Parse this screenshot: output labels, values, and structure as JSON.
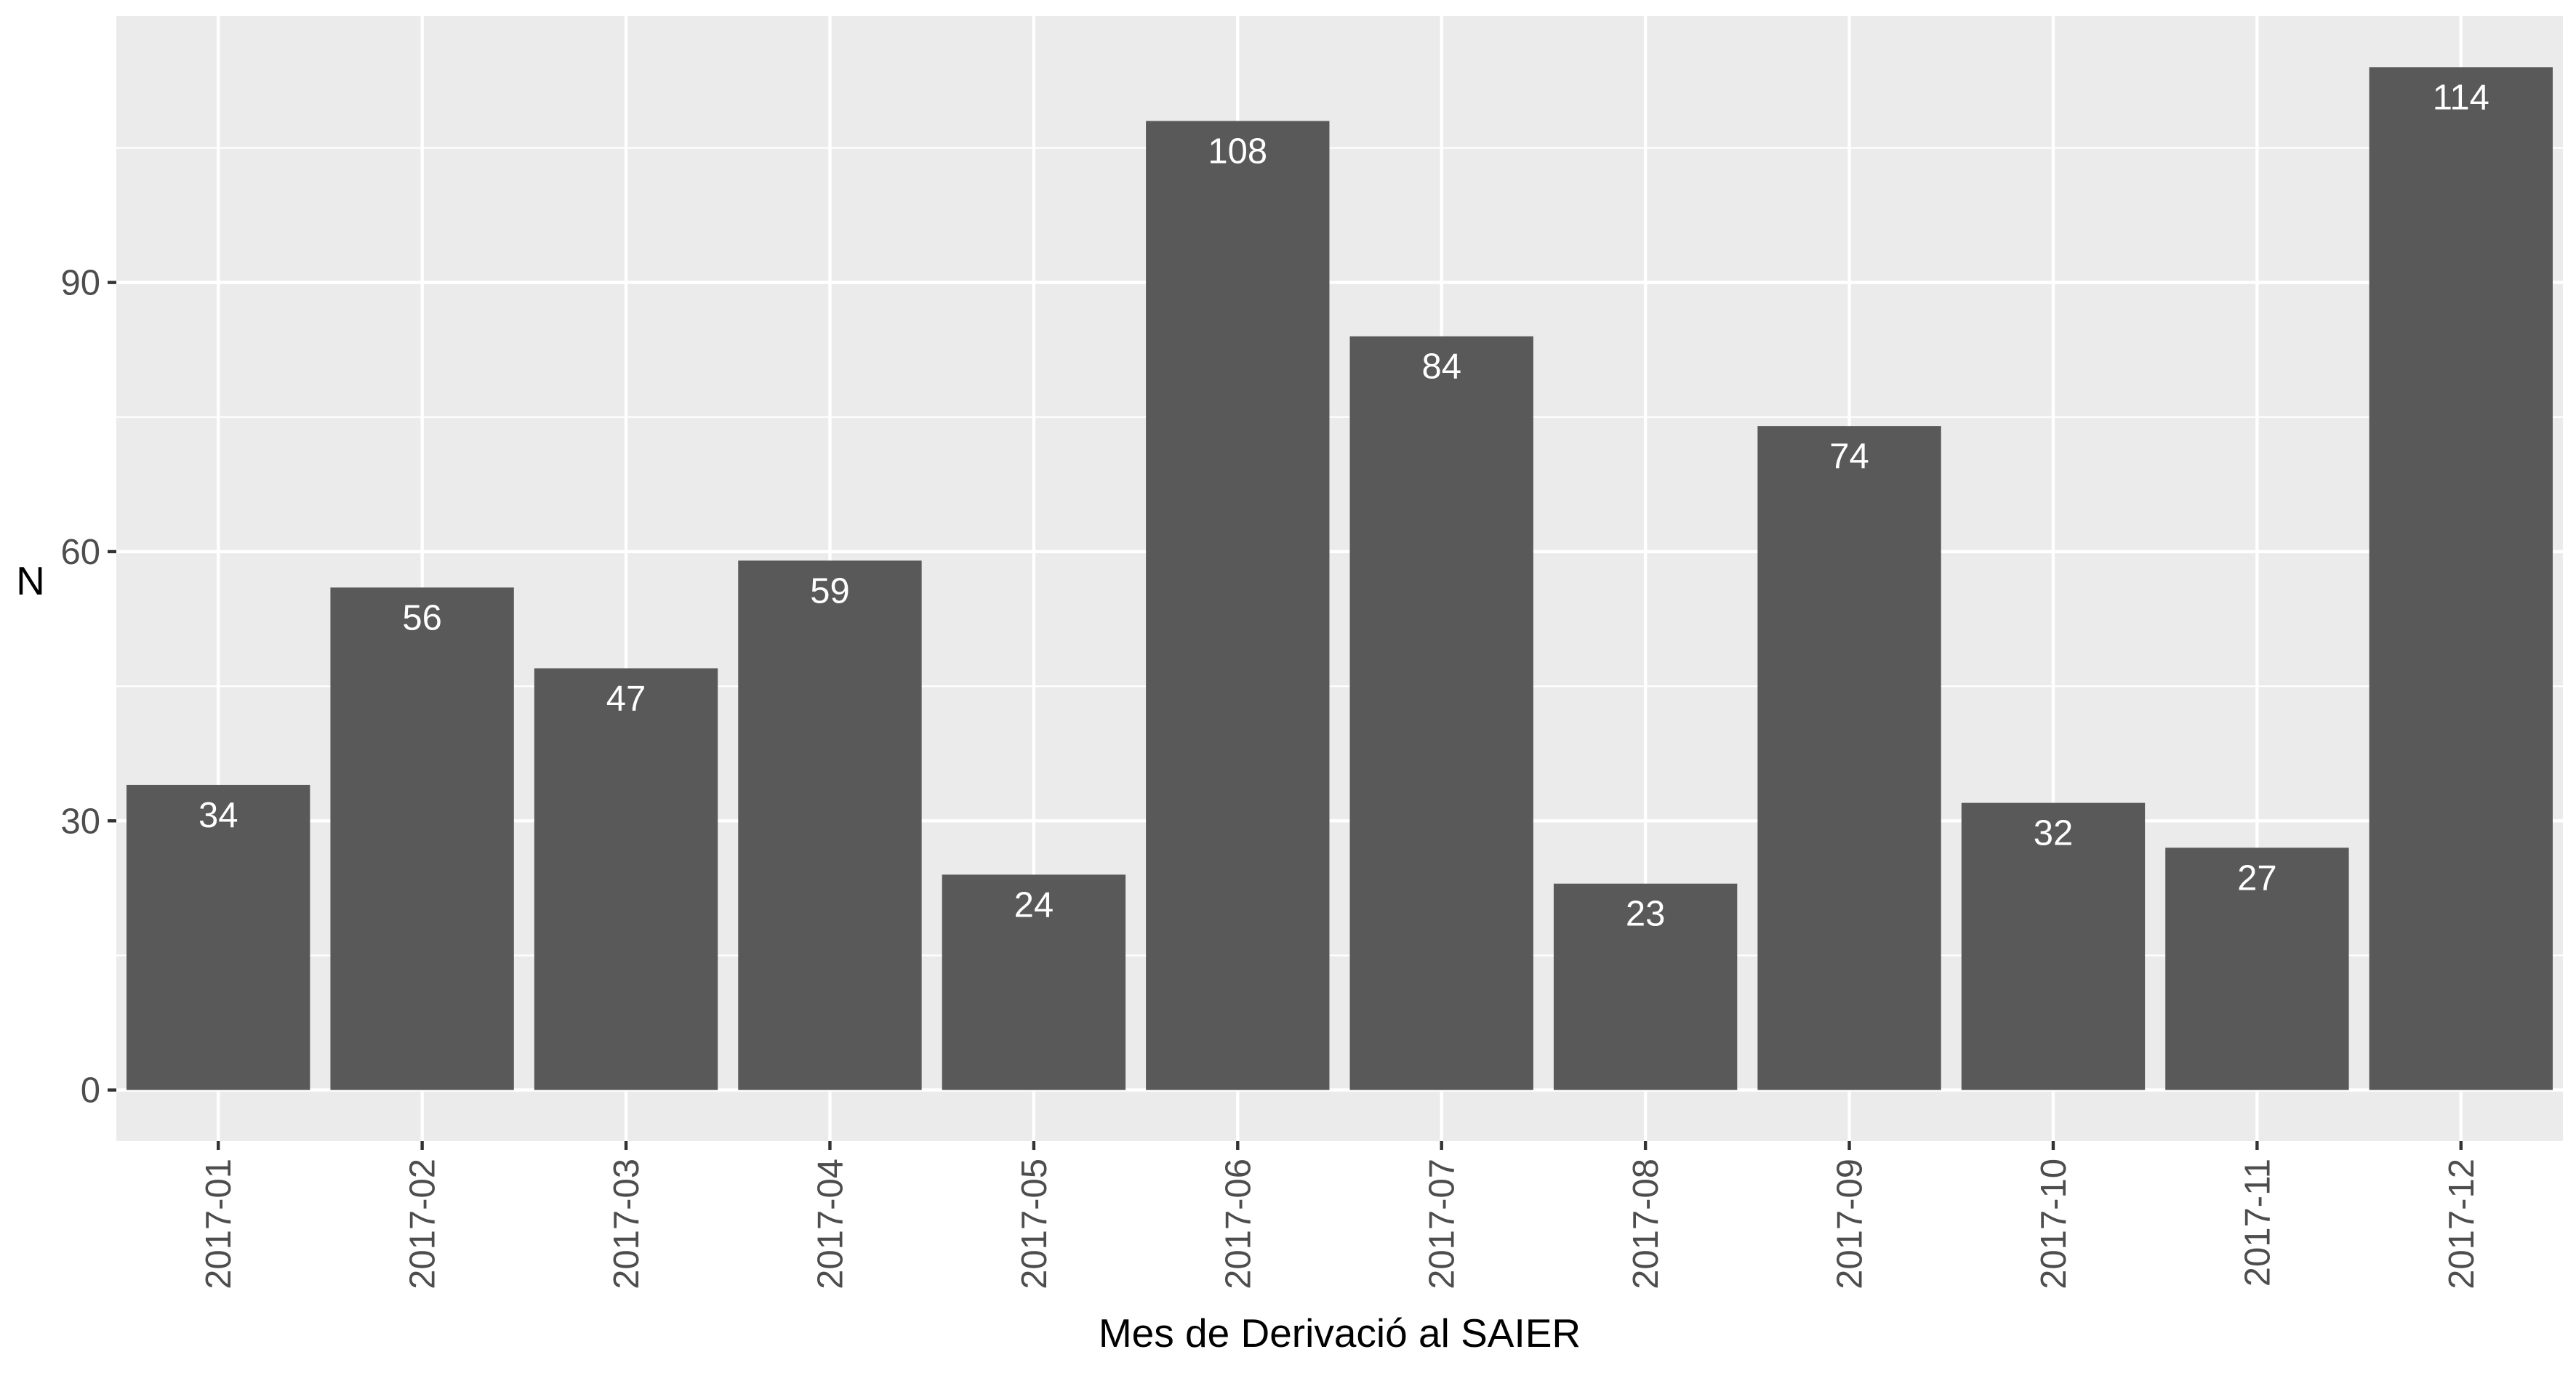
{
  "chart_data": {
    "type": "bar",
    "categories": [
      "2017-01",
      "2017-02",
      "2017-03",
      "2017-04",
      "2017-05",
      "2017-06",
      "2017-07",
      "2017-08",
      "2017-09",
      "2017-10",
      "2017-11",
      "2017-12"
    ],
    "values": [
      34,
      56,
      47,
      59,
      24,
      108,
      84,
      23,
      74,
      32,
      27,
      114
    ],
    "xlabel": "Mes de Derivació al SAIER",
    "ylabel": "N",
    "ylim": [
      -5.7,
      119.7
    ],
    "yticks": [
      0,
      30,
      60,
      90
    ],
    "grid": true,
    "data_labels": true,
    "colors": {
      "panel": "#EBEBEB",
      "grid": "#FFFFFF",
      "bar": "#595959",
      "label_text": "#FFFFFF",
      "axis_text": "#4D4D4D",
      "axis_title": "#000000"
    }
  }
}
